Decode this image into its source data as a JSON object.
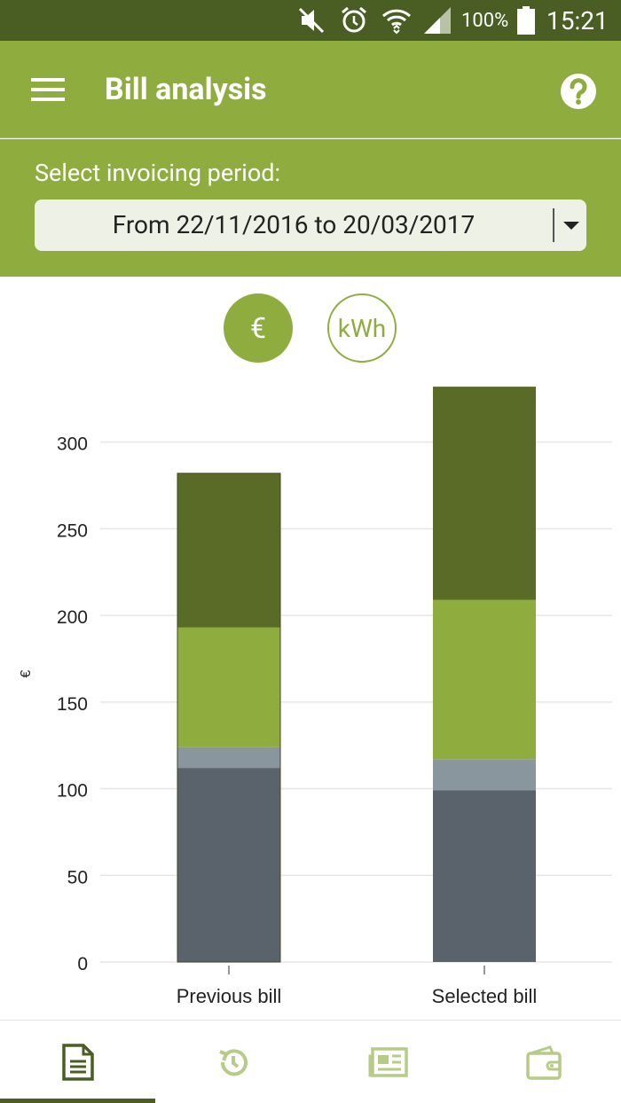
{
  "status_bar": {
    "battery_percent": "100%",
    "time": "15:21",
    "icons": [
      "mute-icon",
      "alarm-icon",
      "wifi-icon",
      "signal-icon",
      "battery-icon"
    ]
  },
  "app_bar": {
    "title": "Bill analysis",
    "menu_icon": "hamburger-menu-icon",
    "help_icon": "help-icon"
  },
  "period": {
    "label": "Select invoicing period:",
    "selected_value": "From 22/11/2016 to 20/03/2017"
  },
  "unit_toggle": {
    "euro_label": "€",
    "kwh_label": "kWh",
    "active": "euro"
  },
  "chart_data": {
    "type": "bar",
    "stacked": true,
    "categories": [
      "Previous bill",
      "Selected bill"
    ],
    "ylabel": "€",
    "ylim": [
      0,
      330
    ],
    "yticks": [
      0,
      50,
      100,
      150,
      200,
      250,
      300
    ],
    "grid": true,
    "series": [
      {
        "values": [
          112,
          99
        ],
        "color": "#5a636b"
      },
      {
        "values": [
          12,
          18
        ],
        "color": "#8a969e"
      },
      {
        "values": [
          69,
          92
        ],
        "color": "#8fad3f"
      },
      {
        "values": [
          89,
          123
        ],
        "color": "#5a6b27"
      }
    ]
  },
  "bottom_nav": {
    "tabs": [
      {
        "icon": "bill-document-icon",
        "active": true
      },
      {
        "icon": "history-icon",
        "active": false
      },
      {
        "icon": "news-icon",
        "active": false
      },
      {
        "icon": "wallet-icon",
        "active": false
      }
    ],
    "active_color": "#4a5e23",
    "inactive_color": "#b6cc86"
  }
}
